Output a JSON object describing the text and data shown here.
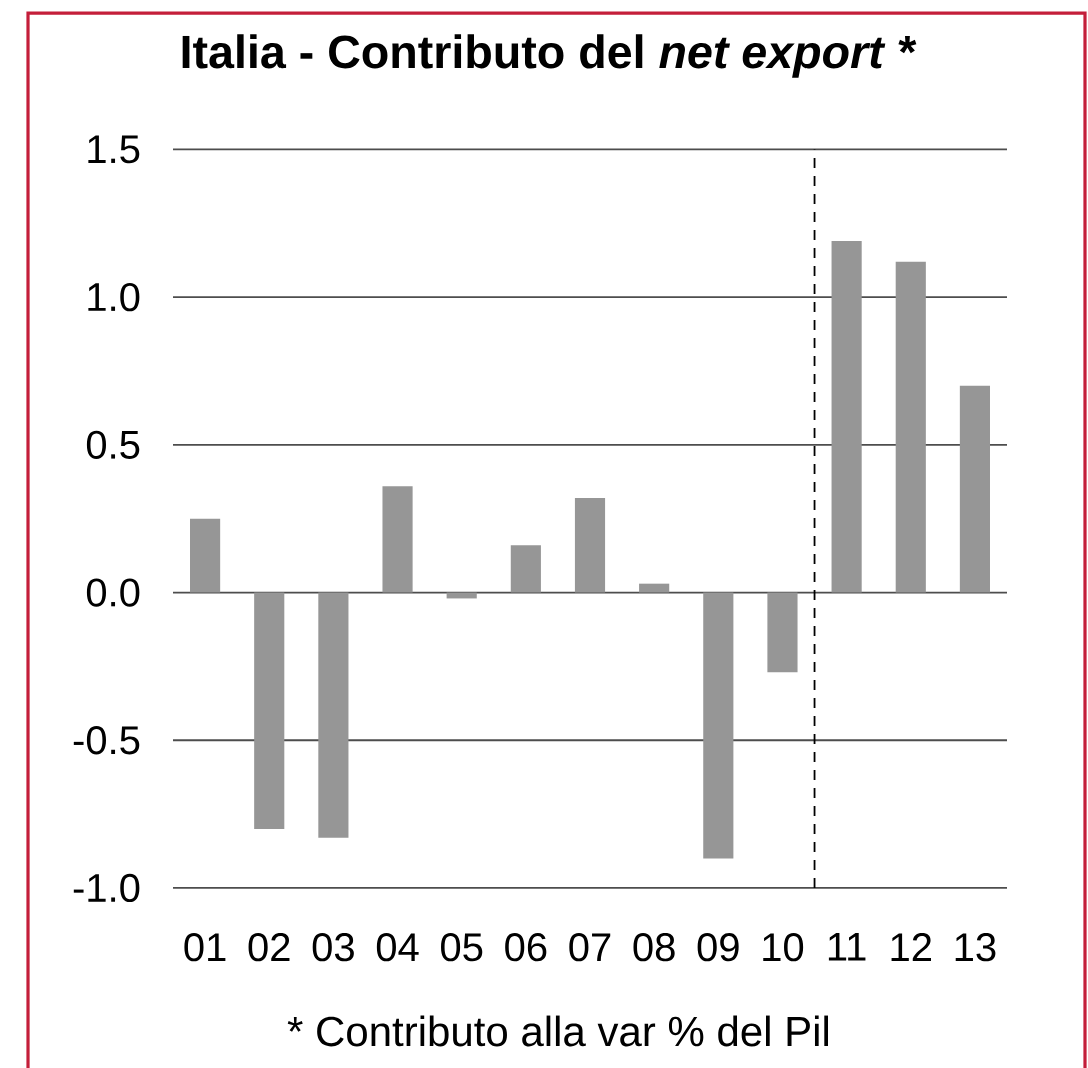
{
  "chart_data": {
    "type": "bar",
    "title": "Italia - Contributo del *net export* *",
    "x": [
      1,
      2,
      3,
      4,
      5,
      6,
      7,
      8,
      9,
      10,
      11,
      12,
      13
    ],
    "values": [
      0.25,
      -0.8,
      -0.83,
      0.36,
      -0.02,
      0.16,
      0.32,
      0.03,
      -0.9,
      -0.27,
      1.19,
      1.12,
      0.7
    ],
    "color": "#969696",
    "xlim": [
      0.5,
      13.5
    ],
    "xticks": [
      {
        "value": 1,
        "label": "01"
      },
      {
        "value": 2,
        "label": "02"
      },
      {
        "value": 3,
        "label": "03"
      },
      {
        "value": 4,
        "label": "04"
      },
      {
        "value": 5,
        "label": "05"
      },
      {
        "value": 6,
        "label": "06"
      },
      {
        "value": 7,
        "label": "07"
      },
      {
        "value": 8,
        "label": "08"
      },
      {
        "value": 9,
        "label": "09"
      },
      10,
      11,
      12,
      13
    ],
    "ylim": [
      -1,
      1.5
    ],
    "yticks": [
      {
        "value": -1,
        "label": "-1.0"
      },
      -0.5,
      {
        "value": 0,
        "label": "0.0"
      },
      0.5,
      {
        "value": 1,
        "label": "1.0"
      },
      1.5
    ],
    "grid": "y",
    "ref_lines": [
      {
        "axis": "x",
        "value": 10.5,
        "color": "#000000",
        "line_style": "dashed"
      }
    ],
    "annotations": [
      "* Contributo alla var % del Pil"
    ]
  }
}
